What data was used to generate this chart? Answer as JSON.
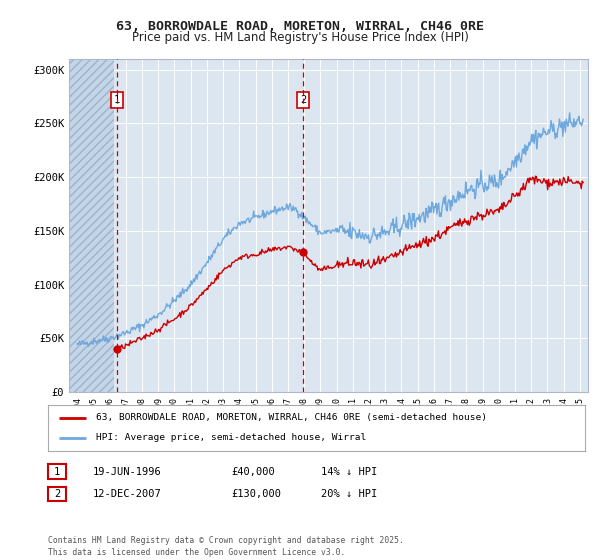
{
  "title": "63, BORROWDALE ROAD, MORETON, WIRRAL, CH46 0RE",
  "subtitle": "Price paid vs. HM Land Registry's House Price Index (HPI)",
  "xlim": [
    1993.5,
    2025.5
  ],
  "ylim": [
    0,
    310000
  ],
  "yticks": [
    0,
    50000,
    100000,
    150000,
    200000,
    250000,
    300000
  ],
  "ytick_labels": [
    "£0",
    "£50K",
    "£100K",
    "£150K",
    "£200K",
    "£250K",
    "£300K"
  ],
  "background_color": "#ffffff",
  "plot_bg_color": "#dce6f1",
  "grid_color": "#ffffff",
  "sale1": {
    "date": 1996.47,
    "price": 40000,
    "label": "1"
  },
  "sale2": {
    "date": 2007.95,
    "price": 130000,
    "label": "2"
  },
  "sale_color": "#cc0000",
  "hpi_color": "#6fa8dc",
  "legend_label1": "63, BORROWDALE ROAD, MORETON, WIRRAL, CH46 0RE (semi-detached house)",
  "legend_label2": "HPI: Average price, semi-detached house, Wirral",
  "table_row1": [
    "1",
    "19-JUN-1996",
    "£40,000",
    "14% ↓ HPI"
  ],
  "table_row2": [
    "2",
    "12-DEC-2007",
    "£130,000",
    "20% ↓ HPI"
  ],
  "footer": "Contains HM Land Registry data © Crown copyright and database right 2025.\nThis data is licensed under the Open Government Licence v3.0.",
  "title_fontsize": 9.5,
  "subtitle_fontsize": 8.5
}
